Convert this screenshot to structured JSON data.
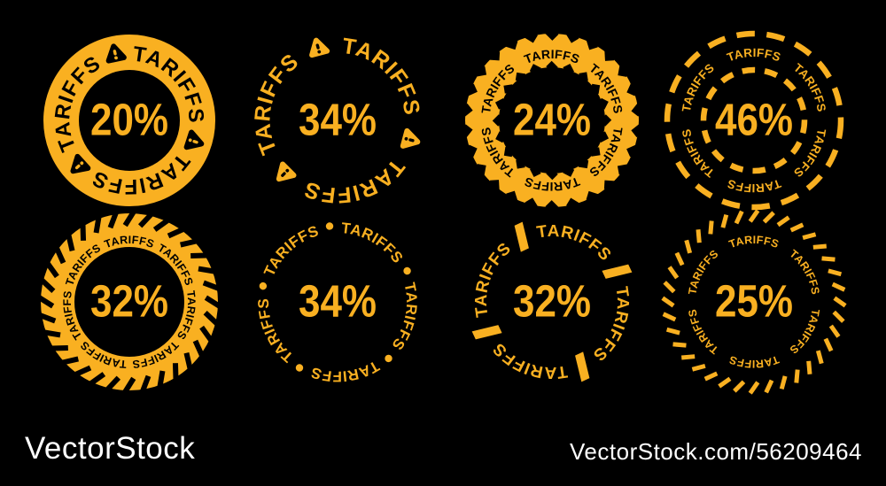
{
  "page": {
    "background": "#000000"
  },
  "colors": {
    "accent": "#F9B021",
    "on_accent": "#000000",
    "watermark_text": "#ffffff"
  },
  "badges": [
    {
      "id": "stamp-1",
      "word": "TARIFFS",
      "percent": "20%",
      "style": "solid-ring",
      "repeats": 3,
      "separator": "warning-triangle-icon",
      "phase": 48,
      "row": 0,
      "col": 0
    },
    {
      "id": "stamp-2",
      "word": "TARIFFS",
      "percent": "34%",
      "style": "triangle-text",
      "repeats": 3,
      "separator": "warning-triangle-icon",
      "phase": 45,
      "row": 0,
      "col": 1
    },
    {
      "id": "stamp-3",
      "word": "TARIFFS",
      "percent": "24%",
      "style": "saw-ring",
      "repeats": 6,
      "separator": "none",
      "phase": 0,
      "row": 0,
      "col": 2
    },
    {
      "id": "stamp-4",
      "word": "TARIFFS",
      "percent": "46%",
      "style": "dashed-double",
      "repeats": 6,
      "separator": "none",
      "phase": 0,
      "row": 0,
      "col": 3
    },
    {
      "id": "stamp-5",
      "word": "TARIFFS",
      "percent": "32%",
      "style": "hazard-ring",
      "repeats": 7,
      "separator": "none",
      "phase": 0,
      "row": 1,
      "col": 0
    },
    {
      "id": "stamp-6",
      "word": "TARIFFS",
      "percent": "34%",
      "style": "dot-text",
      "repeats": 5,
      "separator": "dot",
      "phase": 30,
      "row": 1,
      "col": 1
    },
    {
      "id": "stamp-7",
      "word": "TARIFFS",
      "percent": "32%",
      "style": "slash-text",
      "repeats": 4,
      "separator": "slash",
      "phase": 20,
      "row": 1,
      "col": 2
    },
    {
      "id": "stamp-8",
      "word": "TARIFFS",
      "percent": "25%",
      "style": "tick-ring",
      "repeats": 6,
      "separator": "none",
      "phase": 0,
      "row": 1,
      "col": 3
    }
  ],
  "footer": {
    "logo": "VectorStock",
    "credit": "VectorStock.com/56209464"
  }
}
